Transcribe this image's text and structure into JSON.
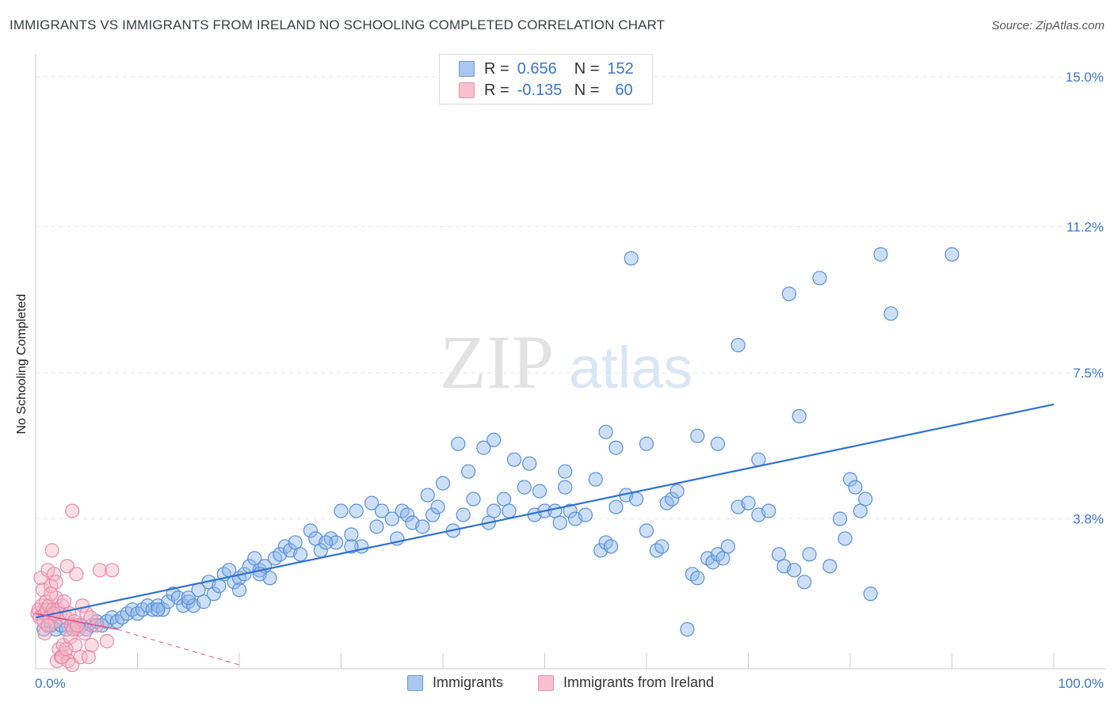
{
  "title": "IMMIGRANTS VS IMMIGRANTS FROM IRELAND NO SCHOOLING COMPLETED CORRELATION CHART",
  "source": "Source: ZipAtlas.com",
  "watermark": {
    "zip": "ZIP",
    "atlas": "atlas"
  },
  "legend_top": [
    {
      "r_label": "R =",
      "r_value": "0.656",
      "n_label": "N =",
      "n_value": "152",
      "color": "#a8c8f0",
      "border": "#6a9ad8"
    },
    {
      "r_label": "R =",
      "r_value": "-0.135",
      "n_label": "N =",
      "n_value": "60",
      "color": "#f8c0d0",
      "border": "#e890a8"
    }
  ],
  "chart_data": {
    "type": "scatter",
    "title": "IMMIGRANTS VS IMMIGRANTS FROM IRELAND NO SCHOOLING COMPLETED CORRELATION CHART",
    "xlabel": "",
    "ylabel": "No Schooling Completed",
    "xlim": [
      0,
      100
    ],
    "ylim": [
      0,
      15.0
    ],
    "x_tick_labels": [
      "0.0%",
      "100.0%"
    ],
    "y_ticks": [
      3.8,
      7.5,
      11.2,
      15.0
    ],
    "y_tick_labels": [
      "3.8%",
      "7.5%",
      "11.2%",
      "15.0%"
    ],
    "grid": true,
    "legend_position": "bottom-center",
    "series": [
      {
        "name": "Immigrants",
        "color": "#8fb8ea",
        "stroke": "#5a8fd6",
        "trend": {
          "x": [
            0,
            100
          ],
          "y": [
            1.3,
            6.7
          ],
          "color": "#2f72d0"
        },
        "points": [
          [
            0.8,
            1.0
          ],
          [
            1.5,
            1.1
          ],
          [
            2.0,
            1.0
          ],
          [
            2.5,
            1.1
          ],
          [
            3.0,
            1.0
          ],
          [
            3.5,
            1.1
          ],
          [
            4.0,
            1.05
          ],
          [
            4.5,
            1.1
          ],
          [
            5.0,
            1.0
          ],
          [
            5.5,
            1.1
          ],
          [
            6.0,
            1.2
          ],
          [
            6.5,
            1.1
          ],
          [
            7.0,
            1.2
          ],
          [
            7.5,
            1.3
          ],
          [
            8.0,
            1.2
          ],
          [
            8.5,
            1.3
          ],
          [
            9.0,
            1.4
          ],
          [
            9.5,
            1.5
          ],
          [
            10.0,
            1.4
          ],
          [
            10.5,
            1.5
          ],
          [
            11.0,
            1.6
          ],
          [
            11.5,
            1.5
          ],
          [
            12.0,
            1.6
          ],
          [
            12.5,
            1.5
          ],
          [
            13.0,
            1.7
          ],
          [
            13.5,
            1.9
          ],
          [
            14.0,
            1.8
          ],
          [
            14.5,
            1.6
          ],
          [
            15.0,
            1.7
          ],
          [
            15.5,
            1.6
          ],
          [
            16.0,
            2.0
          ],
          [
            16.5,
            1.7
          ],
          [
            17.0,
            2.2
          ],
          [
            17.5,
            1.9
          ],
          [
            18.0,
            2.1
          ],
          [
            18.5,
            2.4
          ],
          [
            19.0,
            2.5
          ],
          [
            19.5,
            2.2
          ],
          [
            20.0,
            2.3
          ],
          [
            20.5,
            2.4
          ],
          [
            21.0,
            2.6
          ],
          [
            21.5,
            2.8
          ],
          [
            22.0,
            2.5
          ],
          [
            22.5,
            2.6
          ],
          [
            23.0,
            2.3
          ],
          [
            23.5,
            2.8
          ],
          [
            24.0,
            2.9
          ],
          [
            24.5,
            3.1
          ],
          [
            25.0,
            3.0
          ],
          [
            25.5,
            3.2
          ],
          [
            26.0,
            2.9
          ],
          [
            27.0,
            3.5
          ],
          [
            27.5,
            3.3
          ],
          [
            28.0,
            3.0
          ],
          [
            29.0,
            3.3
          ],
          [
            29.5,
            3.2
          ],
          [
            30.0,
            4.0
          ],
          [
            31.0,
            3.4
          ],
          [
            31.5,
            4.0
          ],
          [
            32.0,
            3.1
          ],
          [
            33.0,
            4.2
          ],
          [
            33.5,
            3.6
          ],
          [
            34.0,
            4.0
          ],
          [
            35.0,
            3.8
          ],
          [
            35.5,
            3.3
          ],
          [
            36.0,
            4.0
          ],
          [
            36.5,
            3.9
          ],
          [
            37.0,
            3.7
          ],
          [
            38.0,
            3.6
          ],
          [
            38.5,
            4.4
          ],
          [
            39.0,
            3.9
          ],
          [
            39.5,
            4.1
          ],
          [
            40.0,
            4.7
          ],
          [
            41.0,
            3.5
          ],
          [
            42.0,
            3.9
          ],
          [
            42.5,
            5.0
          ],
          [
            43.0,
            4.3
          ],
          [
            44.0,
            5.6
          ],
          [
            44.5,
            3.7
          ],
          [
            45.0,
            4.0
          ],
          [
            46.0,
            4.3
          ],
          [
            46.5,
            4.0
          ],
          [
            47.0,
            5.3
          ],
          [
            48.0,
            4.6
          ],
          [
            48.5,
            5.2
          ],
          [
            49.0,
            3.9
          ],
          [
            49.5,
            4.5
          ],
          [
            50.0,
            4.0
          ],
          [
            51.0,
            4.0
          ],
          [
            51.5,
            3.7
          ],
          [
            52.0,
            4.6
          ],
          [
            52.5,
            4.0
          ],
          [
            53.0,
            3.8
          ],
          [
            54.0,
            3.9
          ],
          [
            55.0,
            4.8
          ],
          [
            55.5,
            3.0
          ],
          [
            56.0,
            3.2
          ],
          [
            56.5,
            3.1
          ],
          [
            57.0,
            4.1
          ],
          [
            58.0,
            4.4
          ],
          [
            58.5,
            10.4
          ],
          [
            59.0,
            4.3
          ],
          [
            60.0,
            3.5
          ],
          [
            61.0,
            3.0
          ],
          [
            62.0,
            4.2
          ],
          [
            62.5,
            4.3
          ],
          [
            63.0,
            4.5
          ],
          [
            64.0,
            1.0
          ],
          [
            64.5,
            2.4
          ],
          [
            65.0,
            2.3
          ],
          [
            66.0,
            2.8
          ],
          [
            66.5,
            2.7
          ],
          [
            67.0,
            2.9
          ],
          [
            67.5,
            2.8
          ],
          [
            68.0,
            3.1
          ],
          [
            69.0,
            4.1
          ],
          [
            70.0,
            4.2
          ],
          [
            71.0,
            3.9
          ],
          [
            72.0,
            4.0
          ],
          [
            73.0,
            2.9
          ],
          [
            73.5,
            2.6
          ],
          [
            74.0,
            9.5
          ],
          [
            74.5,
            2.5
          ],
          [
            75.0,
            6.4
          ],
          [
            75.5,
            2.2
          ],
          [
            76.0,
            2.9
          ],
          [
            77.0,
            9.9
          ],
          [
            78.0,
            2.6
          ],
          [
            79.0,
            3.8
          ],
          [
            79.5,
            3.3
          ],
          [
            80.0,
            4.8
          ],
          [
            80.5,
            4.6
          ],
          [
            81.0,
            4.0
          ],
          [
            81.5,
            4.3
          ],
          [
            82.0,
            1.9
          ],
          [
            83.0,
            10.5
          ],
          [
            84.0,
            9.0
          ],
          [
            90.0,
            10.5
          ],
          [
            60.0,
            5.7
          ],
          [
            56.0,
            6.0
          ],
          [
            57.0,
            5.6
          ],
          [
            65.0,
            5.9
          ],
          [
            67.0,
            5.7
          ],
          [
            69.0,
            8.2
          ],
          [
            71.0,
            5.3
          ],
          [
            52.0,
            5.0
          ],
          [
            45.0,
            5.8
          ],
          [
            41.5,
            5.7
          ],
          [
            61.5,
            3.1
          ],
          [
            20.0,
            2.0
          ],
          [
            12.0,
            1.5
          ],
          [
            15.0,
            1.8
          ],
          [
            22.0,
            2.4
          ],
          [
            28.5,
            3.2
          ],
          [
            31.0,
            3.1
          ]
        ]
      },
      {
        "name": "Immigrants from Ireland",
        "color": "#f5b6c8",
        "stroke": "#e98aa6",
        "trend": {
          "x": [
            0,
            8,
            20
          ],
          "y": [
            1.4,
            1.0,
            0.1
          ],
          "color": "#e0508a"
        },
        "points": [
          [
            0.2,
            1.4
          ],
          [
            0.3,
            1.5
          ],
          [
            0.4,
            1.3
          ],
          [
            0.5,
            2.3
          ],
          [
            0.6,
            1.6
          ],
          [
            0.7,
            2.0
          ],
          [
            0.8,
            1.2
          ],
          [
            0.9,
            1.4
          ],
          [
            1.0,
            1.7
          ],
          [
            1.1,
            1.5
          ],
          [
            1.2,
            2.5
          ],
          [
            1.3,
            1.6
          ],
          [
            1.4,
            1.3
          ],
          [
            1.5,
            2.1
          ],
          [
            1.6,
            3.0
          ],
          [
            1.7,
            1.5
          ],
          [
            1.8,
            2.4
          ],
          [
            1.9,
            1.2
          ],
          [
            2.0,
            1.8
          ],
          [
            2.1,
            0.2
          ],
          [
            2.2,
            1.5
          ],
          [
            2.3,
            0.5
          ],
          [
            2.4,
            1.4
          ],
          [
            2.5,
            0.3
          ],
          [
            2.6,
            1.6
          ],
          [
            2.7,
            0.6
          ],
          [
            2.8,
            1.7
          ],
          [
            2.9,
            0.4
          ],
          [
            3.0,
            1.3
          ],
          [
            3.1,
            2.6
          ],
          [
            3.2,
            0.2
          ],
          [
            3.3,
            1.4
          ],
          [
            3.4,
            0.8
          ],
          [
            3.5,
            1.1
          ],
          [
            3.6,
            0.1
          ],
          [
            3.8,
            1.2
          ],
          [
            4.0,
            2.4
          ],
          [
            4.2,
            1.0
          ],
          [
            4.4,
            0.3
          ],
          [
            4.6,
            1.6
          ],
          [
            4.8,
            0.9
          ],
          [
            5.0,
            1.4
          ],
          [
            5.2,
            0.3
          ],
          [
            5.4,
            1.3
          ],
          [
            3.7,
            1.0
          ],
          [
            3.9,
            0.6
          ],
          [
            2.6,
            0.3
          ],
          [
            1.5,
            1.9
          ],
          [
            0.9,
            0.9
          ],
          [
            6.0,
            1.1
          ],
          [
            6.3,
            2.5
          ],
          [
            7.0,
            0.7
          ],
          [
            7.5,
            2.5
          ],
          [
            5.5,
            0.6
          ],
          [
            4.1,
            1.1
          ],
          [
            3.0,
            0.5
          ],
          [
            2.0,
            2.2
          ],
          [
            1.2,
            1.1
          ],
          [
            3.6,
            4.0
          ],
          [
            1.8,
            1.4
          ]
        ]
      }
    ]
  },
  "legend_bottom": [
    {
      "label": "Immigrants",
      "color": "#a8c8f0",
      "border": "#6a9ad8"
    },
    {
      "label": "Immigrants from Ireland",
      "color": "#f8c0d0",
      "border": "#e890a8"
    }
  ]
}
